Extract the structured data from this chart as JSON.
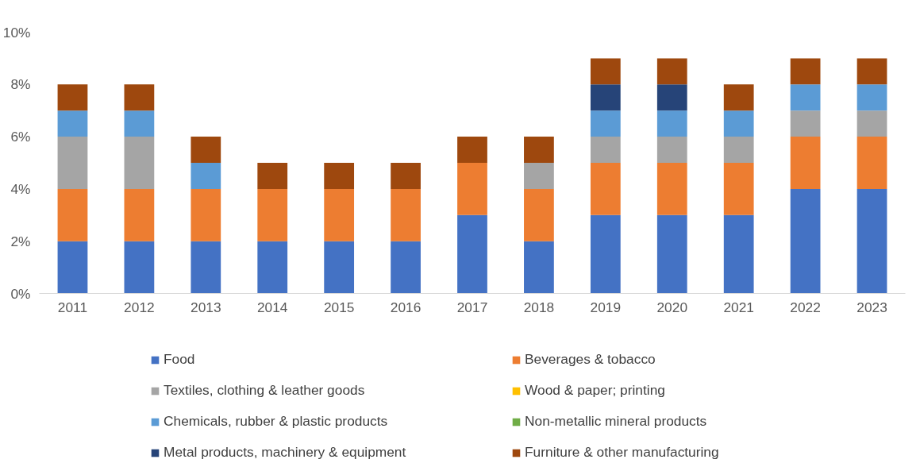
{
  "chart_data": {
    "type": "bar",
    "stacked": true,
    "categories": [
      "2011",
      "2012",
      "2013",
      "2014",
      "2015",
      "2016",
      "2017",
      "2018",
      "2019",
      "2020",
      "2021",
      "2022",
      "2023"
    ],
    "series": [
      {
        "name": "Food",
        "color": "#4472c4",
        "values": [
          2,
          2,
          2,
          2,
          2,
          2,
          3,
          2,
          3,
          3,
          3,
          4,
          4
        ]
      },
      {
        "name": "Beverages & tobacco",
        "color": "#ed7d31",
        "values": [
          2,
          2,
          2,
          2,
          2,
          2,
          2,
          2,
          2,
          2,
          2,
          2,
          2
        ]
      },
      {
        "name": "Textiles, clothing & leather goods",
        "color": "#a5a5a5",
        "values": [
          2,
          2,
          0,
          0,
          0,
          0,
          0,
          1,
          1,
          1,
          1,
          1,
          1
        ]
      },
      {
        "name": "Wood & paper; printing",
        "color": "#ffc000",
        "values": [
          0,
          0,
          0,
          0,
          0,
          0,
          0,
          0,
          0,
          0,
          0,
          0,
          0
        ]
      },
      {
        "name": "Chemicals, rubber & plastic products",
        "color": "#5b9bd5",
        "values": [
          1,
          1,
          1,
          0,
          0,
          0,
          0,
          0,
          1,
          1,
          1,
          1,
          1
        ]
      },
      {
        "name": "Non-metallic mineral products",
        "color": "#70ad47",
        "values": [
          0,
          0,
          0,
          0,
          0,
          0,
          0,
          0,
          0,
          0,
          0,
          0,
          0
        ]
      },
      {
        "name": "Metal products, machinery & equipment",
        "color": "#264478",
        "values": [
          0,
          0,
          0,
          0,
          0,
          0,
          0,
          0,
          1,
          1,
          0,
          0,
          0
        ]
      },
      {
        "name": "Furniture & other manufacturing",
        "color": "#9e480e",
        "values": [
          1,
          1,
          1,
          1,
          1,
          1,
          1,
          1,
          1,
          1,
          1,
          1,
          1
        ]
      }
    ],
    "ylim": [
      0,
      10
    ],
    "yticks": [
      {
        "value": 0,
        "label": "0%"
      },
      {
        "value": 2,
        "label": "2%"
      },
      {
        "value": 4,
        "label": "4%"
      },
      {
        "value": 6,
        "label": "6%"
      },
      {
        "value": 8,
        "label": "8%"
      },
      {
        "value": 10,
        "label": "10%"
      }
    ],
    "grid": false,
    "legend": "bottom"
  }
}
